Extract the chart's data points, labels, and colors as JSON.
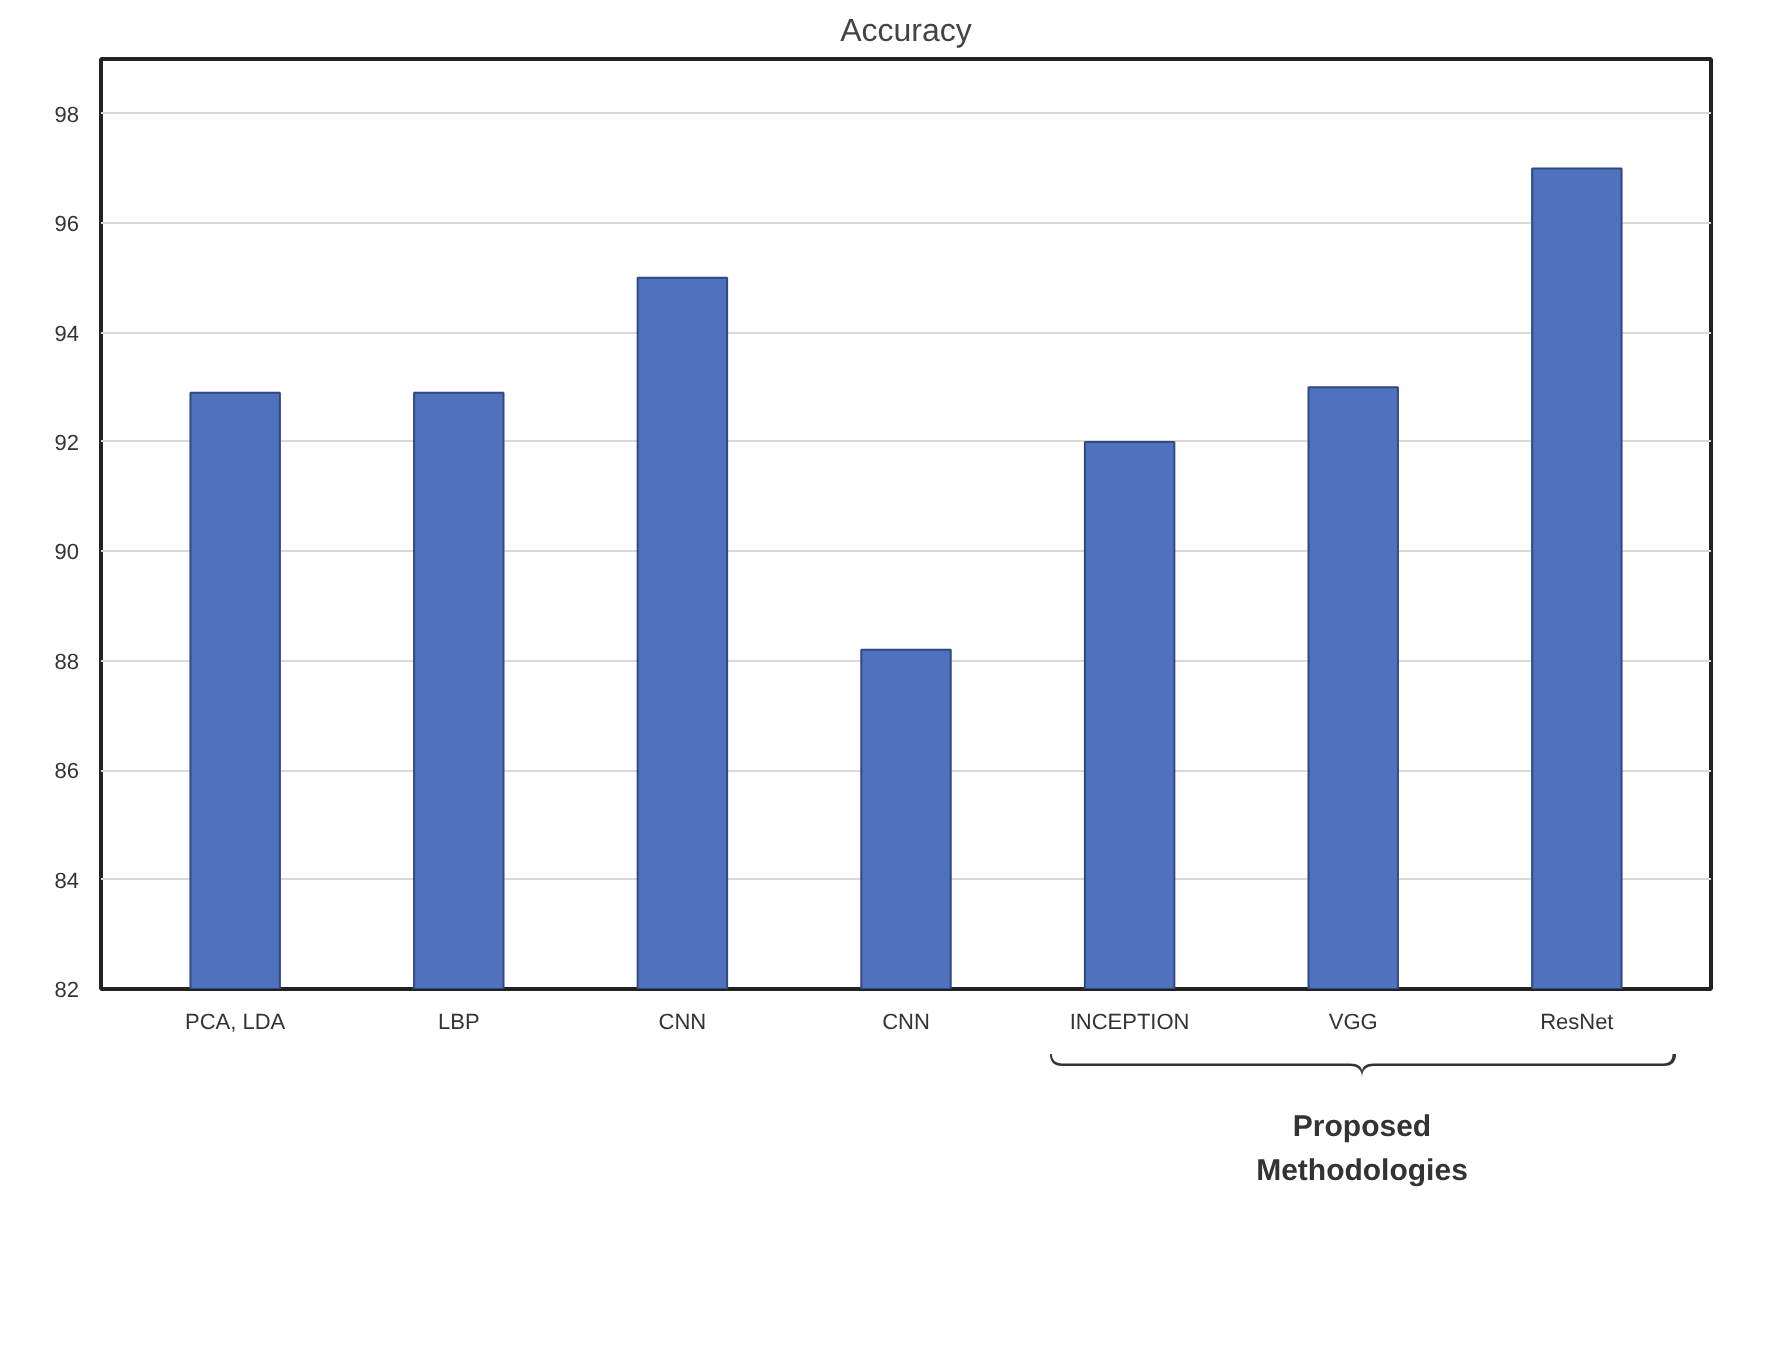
{
  "chart_data": {
    "type": "bar",
    "title": "Accuracy",
    "categories": [
      "PCA, LDA",
      "LBP",
      "CNN",
      "CNN",
      "INCEPTION",
      "VGG",
      "ResNet"
    ],
    "values": [
      92.9,
      92.9,
      95,
      88.2,
      92,
      93,
      97
    ],
    "color": "#4f71be",
    "ylim": [
      82,
      99
    ],
    "yticks": [
      82,
      84,
      86,
      88,
      90,
      92,
      94,
      96,
      98
    ],
    "grid": "y",
    "annotations": [
      "Proposed\nMethodologies"
    ]
  }
}
